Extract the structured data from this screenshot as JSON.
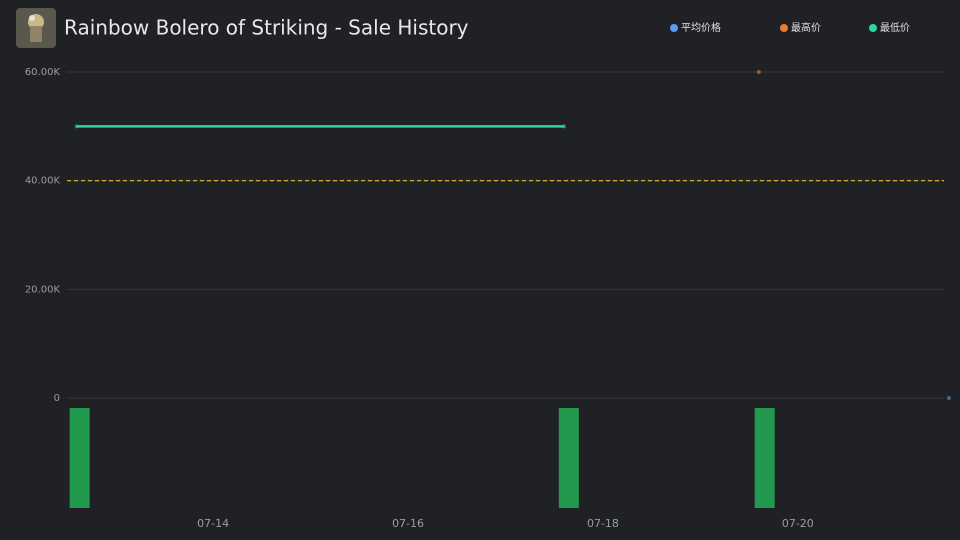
{
  "chart_data": {
    "type": "line",
    "title": "Rainbow Bolero of Striking - Sale History",
    "series": [
      {
        "name": "平均价格",
        "color": "#5b9cf0",
        "x": [
          21.55
        ],
        "values": [
          0
        ]
      },
      {
        "name": "最高价",
        "color": "#f07a30",
        "x": [
          19.6
        ],
        "values": [
          60000
        ]
      },
      {
        "name": "最低价",
        "color": "#2ed69a",
        "x": [
          12.6,
          17.6
        ],
        "values": [
          50000,
          50000
        ]
      }
    ],
    "volume": {
      "color": "#23994f",
      "x": [
        12.63,
        17.65,
        19.66
      ],
      "values": [
        1,
        1,
        1
      ]
    },
    "reference_line": {
      "value": 40000,
      "color": "#e8c032"
    },
    "xlim": [
      12.5,
      21.5
    ],
    "xticks": [
      {
        "value": 14,
        "label": "07-14"
      },
      {
        "value": 16,
        "label": "07-16"
      },
      {
        "value": 18,
        "label": "07-18"
      },
      {
        "value": 20,
        "label": "07-20"
      }
    ],
    "ylim": [
      0,
      60000
    ],
    "yticks": [
      0,
      {
        "value": 20000,
        "label": "20.00K"
      },
      {
        "value": 40000,
        "label": "40.00K"
      },
      {
        "value": 60000,
        "label": "60.00K"
      }
    ],
    "grid": true
  }
}
